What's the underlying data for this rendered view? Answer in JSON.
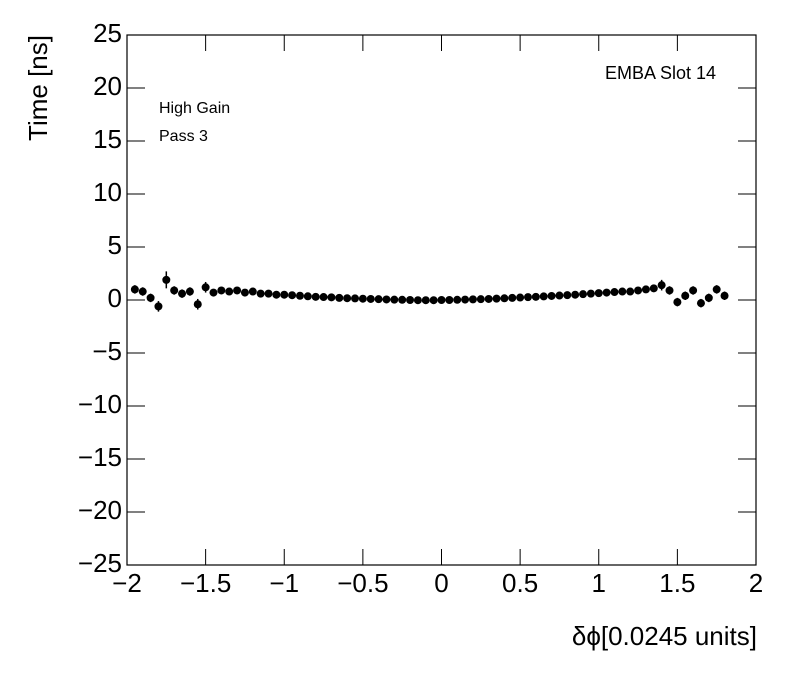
{
  "chart_data": {
    "type": "scatter",
    "x_label": "δϕ[0.0245 units]",
    "y_label": "Time [ns]",
    "annotations": [
      "EMBA Slot 14",
      "High Gain",
      "Pass 3"
    ],
    "color": "#000000",
    "x": [
      -1.95,
      -1.9,
      -1.85,
      -1.8,
      -1.75,
      -1.7,
      -1.65,
      -1.6,
      -1.55,
      -1.5,
      -1.45,
      -1.4,
      -1.35,
      -1.3,
      -1.25,
      -1.2,
      -1.15,
      -1.1,
      -1.05,
      -1.0,
      -0.95,
      -0.9,
      -0.85,
      -0.8,
      -0.75,
      -0.7,
      -0.65,
      -0.6,
      -0.55,
      -0.5,
      -0.45,
      -0.4,
      -0.35,
      -0.3,
      -0.25,
      -0.2,
      -0.15,
      -0.1,
      -0.05,
      0,
      0.05,
      0.1,
      0.15,
      0.2,
      0.25,
      0.3,
      0.35,
      0.4,
      0.45,
      0.5,
      0.55,
      0.6,
      0.65,
      0.7,
      0.75,
      0.8,
      0.85,
      0.9,
      0.95,
      1.0,
      1.05,
      1.1,
      1.15,
      1.2,
      1.25,
      1.3,
      1.35,
      1.4,
      1.45,
      1.5,
      1.55,
      1.6,
      1.65,
      1.7,
      1.75,
      1.8
    ],
    "values": [
      1.0,
      0.8,
      0.2,
      -0.6,
      1.9,
      0.9,
      0.6,
      0.8,
      -0.4,
      1.2,
      0.7,
      0.9,
      0.8,
      0.9,
      0.7,
      0.8,
      0.6,
      0.6,
      0.5,
      0.5,
      0.45,
      0.4,
      0.35,
      0.3,
      0.28,
      0.25,
      0.2,
      0.17,
      0.15,
      0.12,
      0.1,
      0.08,
      0.05,
      0.03,
      0.02,
      0.0,
      -0.02,
      -0.02,
      -0.02,
      0.0,
      0.0,
      0.02,
      0.04,
      0.06,
      0.08,
      0.1,
      0.13,
      0.16,
      0.2,
      0.23,
      0.27,
      0.3,
      0.34,
      0.38,
      0.42,
      0.46,
      0.5,
      0.55,
      0.6,
      0.65,
      0.7,
      0.75,
      0.8,
      0.8,
      0.9,
      1.0,
      1.1,
      1.4,
      0.9,
      -0.2,
      0.4,
      0.9,
      -0.3,
      0.2,
      1.0,
      0.4
    ],
    "errors": [
      0.4,
      0.4,
      0.4,
      0.5,
      0.8,
      0.4,
      0.4,
      0.4,
      0.5,
      0.5,
      0.3,
      0.3,
      0.3,
      0.3,
      0.2,
      0.2,
      0.2,
      0.2,
      0.15,
      0.15,
      0.15,
      0.15,
      0.15,
      0.15,
      0.15,
      0.15,
      0.15,
      0.15,
      0.15,
      0.15,
      0.15,
      0.15,
      0.15,
      0.15,
      0.15,
      0.15,
      0.15,
      0.15,
      0.15,
      0.15,
      0.15,
      0.15,
      0.15,
      0.15,
      0.15,
      0.15,
      0.15,
      0.15,
      0.15,
      0.15,
      0.15,
      0.15,
      0.15,
      0.15,
      0.15,
      0.15,
      0.15,
      0.15,
      0.15,
      0.15,
      0.15,
      0.15,
      0.2,
      0.2,
      0.2,
      0.3,
      0.3,
      0.5,
      0.4,
      0.4,
      0.4,
      0.4,
      0.4,
      0.4,
      0.4,
      0.4
    ],
    "xlim": [
      -2,
      2
    ],
    "ylim": [
      -25,
      25
    ],
    "xticks": [
      {
        "value": -2,
        "label": "−2"
      },
      {
        "value": -1.5,
        "label": "−1.5"
      },
      {
        "value": -1,
        "label": "−1"
      },
      {
        "value": -0.5,
        "label": "−0.5"
      },
      0,
      0.5,
      1,
      1.5,
      2
    ],
    "yticks": [
      {
        "value": -25,
        "label": "−25"
      },
      {
        "value": -20,
        "label": "−20"
      },
      {
        "value": -15,
        "label": "−15"
      },
      {
        "value": -10,
        "label": "−10"
      },
      {
        "value": -5,
        "label": "−5"
      },
      0,
      5,
      10,
      15,
      20,
      25
    ]
  }
}
